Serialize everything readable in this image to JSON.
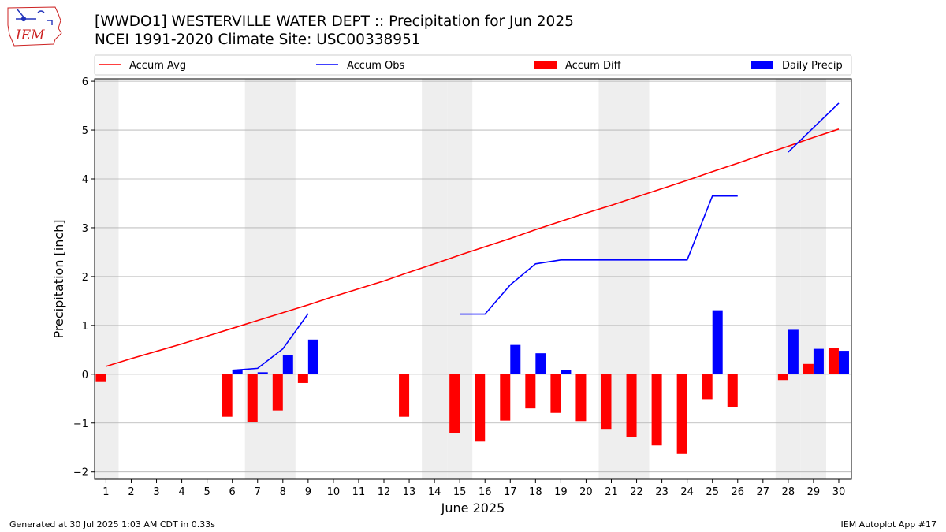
{
  "header": {
    "logo_text": "IEM",
    "title": "[WWDO1] WESTERVILLE WATER DEPT :: Precipitation for Jun 2025",
    "subtitle": "NCEI 1991-2020 Climate Site: USC00338951"
  },
  "footer": {
    "left": "Generated at 30 Jul 2025 1:03 AM CDT in 0.33s",
    "right": "IEM Autoplot App #17"
  },
  "colors": {
    "accum_avg": "#ff0000",
    "accum_obs": "#0000ff",
    "accum_diff": "#ff0000",
    "daily_precip": "#0000ff",
    "weekend_shade": "#eeeeee",
    "grid": "#b0b0b0",
    "logo": "#cc2222"
  },
  "chart_data": {
    "type": "bar",
    "xlabel": "June 2025",
    "ylabel": "Precipitation [inch]",
    "ylim": [
      -2.15,
      6.05
    ],
    "yticks": [
      -2,
      -1,
      0,
      1,
      2,
      3,
      4,
      5,
      6
    ],
    "ytick_labels": [
      "−2",
      "−1",
      "0",
      "1",
      "2",
      "3",
      "4",
      "5",
      "6"
    ],
    "x": [
      1,
      2,
      3,
      4,
      5,
      6,
      7,
      8,
      9,
      10,
      11,
      12,
      13,
      14,
      15,
      16,
      17,
      18,
      19,
      20,
      21,
      22,
      23,
      24,
      25,
      26,
      27,
      28,
      29,
      30
    ],
    "xlim": [
      0.55,
      30.5
    ],
    "grid": "horizontal",
    "legend_position": "top",
    "weekend_days": [
      1,
      7,
      8,
      14,
      15,
      21,
      22,
      28,
      29
    ],
    "series": [
      {
        "name": "Accum Avg",
        "kind": "line",
        "points": [
          [
            1,
            0.16
          ],
          [
            2,
            0.32
          ],
          [
            3,
            0.47
          ],
          [
            4,
            0.62
          ],
          [
            5,
            0.78
          ],
          [
            6,
            0.94
          ],
          [
            7,
            1.1
          ],
          [
            8,
            1.26
          ],
          [
            9,
            1.42
          ],
          [
            10,
            1.59
          ],
          [
            11,
            1.75
          ],
          [
            12,
            1.91
          ],
          [
            13,
            2.09
          ],
          [
            14,
            2.26
          ],
          [
            15,
            2.44
          ],
          [
            16,
            2.61
          ],
          [
            17,
            2.78
          ],
          [
            18,
            2.96
          ],
          [
            19,
            3.13
          ],
          [
            20,
            3.3
          ],
          [
            21,
            3.46
          ],
          [
            22,
            3.63
          ],
          [
            23,
            3.8
          ],
          [
            24,
            3.97
          ],
          [
            25,
            4.15
          ],
          [
            26,
            4.32
          ],
          [
            27,
            4.5
          ],
          [
            28,
            4.67
          ],
          [
            29,
            4.85
          ],
          [
            30,
            5.02
          ]
        ]
      },
      {
        "name": "Accum Obs",
        "kind": "line",
        "segments": [
          [
            [
              6,
              0.08
            ],
            [
              7,
              0.12
            ],
            [
              8,
              0.52
            ],
            [
              9,
              1.24
            ]
          ],
          [
            [
              15,
              1.23
            ],
            [
              16,
              1.23
            ],
            [
              17,
              1.83
            ],
            [
              18,
              2.26
            ],
            [
              19,
              2.34
            ],
            [
              20,
              2.34
            ],
            [
              21,
              2.34
            ],
            [
              22,
              2.34
            ],
            [
              23,
              2.34
            ],
            [
              24,
              2.34
            ],
            [
              25,
              3.65
            ],
            [
              26,
              3.65
            ]
          ],
          [
            [
              28,
              4.55
            ],
            [
              29,
              5.05
            ],
            [
              30,
              5.55
            ]
          ]
        ]
      },
      {
        "name": "Accum Diff",
        "kind": "bar",
        "points": [
          [
            1,
            -0.16
          ],
          [
            6,
            -0.87
          ],
          [
            7,
            -0.98
          ],
          [
            8,
            -0.74
          ],
          [
            9,
            -0.18
          ],
          [
            13,
            -0.87
          ],
          [
            15,
            -1.21
          ],
          [
            16,
            -1.38
          ],
          [
            17,
            -0.95
          ],
          [
            18,
            -0.7
          ],
          [
            19,
            -0.79
          ],
          [
            20,
            -0.96
          ],
          [
            21,
            -1.12
          ],
          [
            22,
            -1.29
          ],
          [
            23,
            -1.46
          ],
          [
            24,
            -1.63
          ],
          [
            25,
            -0.51
          ],
          [
            26,
            -0.67
          ],
          [
            28,
            -0.12
          ],
          [
            29,
            0.21
          ],
          [
            30,
            0.53
          ]
        ]
      },
      {
        "name": "Daily Precip",
        "kind": "bar",
        "points": [
          [
            6,
            0.08
          ],
          [
            7,
            0.04
          ],
          [
            8,
            0.4
          ],
          [
            9,
            0.71
          ],
          [
            17,
            0.6
          ],
          [
            18,
            0.43
          ],
          [
            19,
            0.08
          ],
          [
            25,
            1.31
          ],
          [
            28,
            0.91
          ],
          [
            29,
            0.52
          ],
          [
            30,
            0.48
          ]
        ]
      }
    ]
  }
}
